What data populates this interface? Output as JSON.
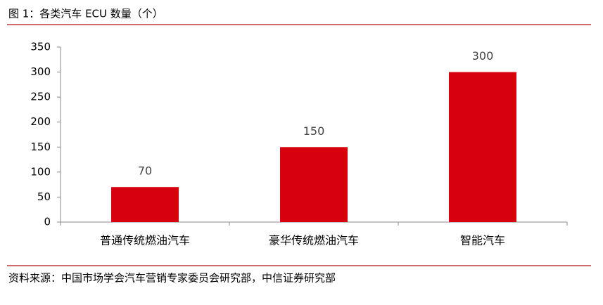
{
  "chart_data": {
    "type": "bar",
    "title": "图 1：各类汽车 ECU 数量（个）",
    "categories": [
      "普通传统燃油汽车",
      "豪华传统燃油汽车",
      "智能汽车"
    ],
    "values": [
      70,
      150,
      300
    ],
    "color": "#d7000f",
    "ylim": [
      0,
      350
    ],
    "yticks": [
      0,
      50,
      100,
      150,
      200,
      250,
      300,
      350
    ],
    "grid": false,
    "source": "资料来源：中国市场学会汽车营销专家委员会研究部，中信证券研究部"
  }
}
